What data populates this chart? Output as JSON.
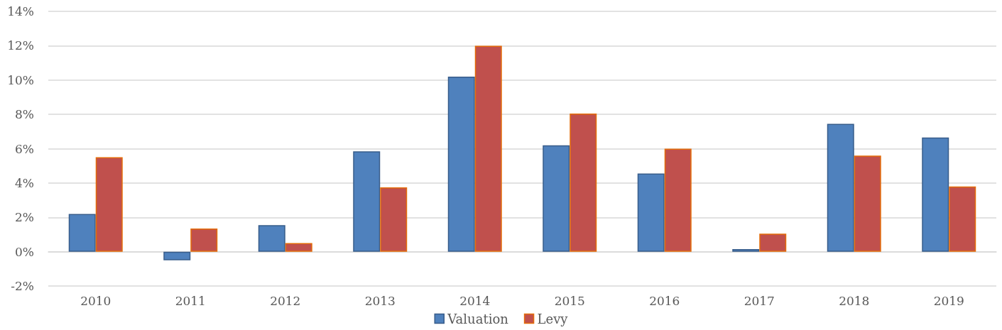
{
  "chart_data": {
    "type": "bar",
    "categories": [
      "2010",
      "2011",
      "2012",
      "2013",
      "2014",
      "2015",
      "2016",
      "2017",
      "2018",
      "2019"
    ],
    "series": [
      {
        "name": "Valuation",
        "color": "#4f81bd",
        "values": [
          2.2,
          -0.5,
          1.55,
          5.85,
          10.2,
          6.2,
          4.55,
          0.15,
          7.45,
          6.65
        ]
      },
      {
        "name": "Levy",
        "color": "#c0504d",
        "values": [
          5.5,
          1.35,
          0.5,
          3.75,
          12.0,
          8.05,
          6.0,
          1.05,
          5.6,
          3.8
        ]
      }
    ],
    "ylim": [
      -2,
      14
    ],
    "yticks": [
      {
        "value": -2,
        "label": "-2%"
      },
      {
        "value": 0,
        "label": "0%"
      },
      {
        "value": 2,
        "label": "2%"
      },
      {
        "value": 4,
        "label": "4%"
      },
      {
        "value": 6,
        "label": "6%"
      },
      {
        "value": 8,
        "label": "8%"
      },
      {
        "value": 10,
        "label": "10%"
      },
      {
        "value": 12,
        "label": "12%"
      },
      {
        "value": 14,
        "label": "14%"
      }
    ],
    "grid": "y",
    "legend": "bottom"
  }
}
